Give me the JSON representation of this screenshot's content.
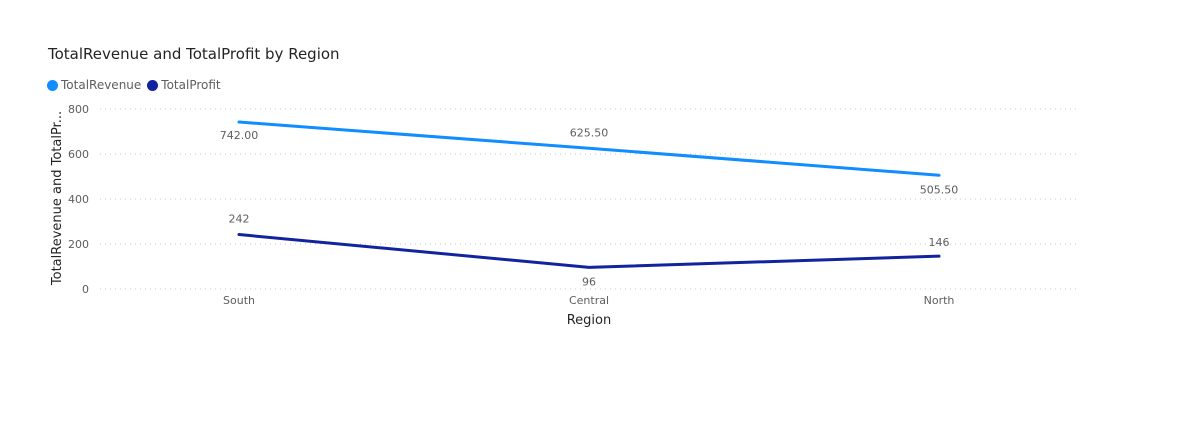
{
  "chart_data": {
    "type": "line",
    "title": "TotalRevenue and TotalProfit by Region",
    "xlabel": "Region",
    "ylabel": "TotalRevenue and TotalPr...",
    "categories": [
      "South",
      "Central",
      "North"
    ],
    "ylim": [
      0,
      800
    ],
    "yticks": [
      0,
      200,
      400,
      600,
      800
    ],
    "ytick_labels": [
      "0",
      "200",
      "400",
      "600",
      "800"
    ],
    "grid": true,
    "legend_position": "top-left",
    "series": [
      {
        "name": "TotalRevenue",
        "color": "#118DFF",
        "values": [
          742.0,
          625.5,
          505.5
        ],
        "labels": [
          "742.00",
          "625.50",
          "505.50"
        ]
      },
      {
        "name": "TotalProfit",
        "color": "#12239E",
        "values": [
          242,
          96,
          146
        ],
        "labels": [
          "242",
          "96",
          "146"
        ]
      }
    ]
  }
}
